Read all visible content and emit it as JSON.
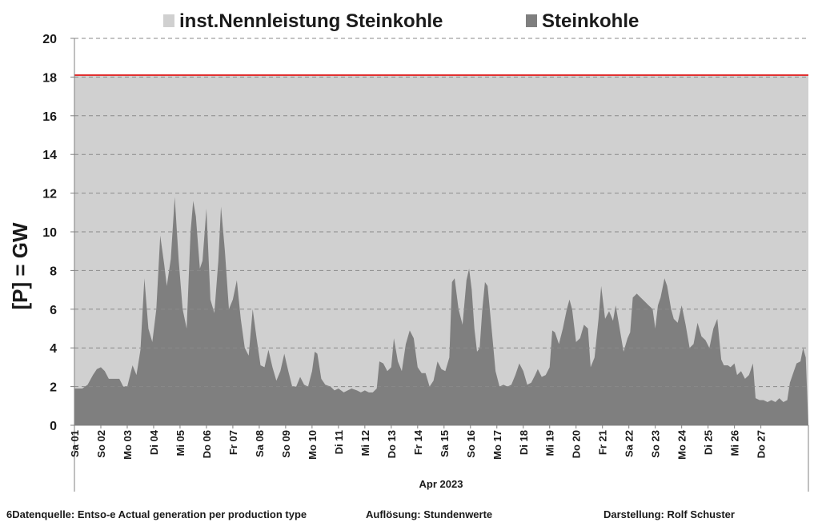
{
  "chart_data": {
    "type": "area",
    "ylabel": "[P]  =  GW",
    "xlabel": "Apr 2023",
    "ylim": [
      0,
      20
    ],
    "yticks": [
      0,
      2,
      4,
      6,
      8,
      10,
      12,
      14,
      16,
      18,
      20
    ],
    "grid": true,
    "legend_position": "top",
    "x_tick_labels": [
      "Sa 01",
      "So 02",
      "Mo 03",
      "Di 04",
      "Mi 05",
      "Do 06",
      "Fr 07",
      "Sa 08",
      "So 09",
      "Mo 10",
      "Di 11",
      "Mi 12",
      "Do 13",
      "Fr 14",
      "Sa 15",
      "So 16",
      "Mo 17",
      "Di 18",
      "Mi 19",
      "Do 20",
      "Fr 21",
      "Sa 22",
      "So 23",
      "Mo 24",
      "Di 25",
      "Mi 26",
      "Do 27"
    ],
    "x_range_days": [
      0,
      27.8
    ],
    "series": [
      {
        "name": "inst.Nennleistung Steinkohle",
        "color": "#d0d0d0",
        "line_color": "#e03030",
        "constant_value": 18.1
      },
      {
        "name": "Steinkohle",
        "color": "#7f7f7f",
        "points": [
          [
            0.0,
            1.9
          ],
          [
            0.3,
            1.9
          ],
          [
            0.5,
            2.1
          ],
          [
            0.7,
            2.6
          ],
          [
            0.85,
            2.9
          ],
          [
            1.0,
            3.0
          ],
          [
            1.15,
            2.8
          ],
          [
            1.3,
            2.4
          ],
          [
            1.5,
            2.4
          ],
          [
            1.7,
            2.4
          ],
          [
            1.85,
            2.0
          ],
          [
            2.0,
            2.0
          ],
          [
            2.2,
            3.1
          ],
          [
            2.35,
            2.6
          ],
          [
            2.5,
            3.9
          ],
          [
            2.65,
            7.6
          ],
          [
            2.8,
            5.0
          ],
          [
            2.95,
            4.3
          ],
          [
            3.1,
            6.0
          ],
          [
            3.25,
            9.8
          ],
          [
            3.4,
            8.3
          ],
          [
            3.5,
            7.2
          ],
          [
            3.65,
            8.6
          ],
          [
            3.8,
            11.8
          ],
          [
            3.95,
            8.5
          ],
          [
            4.1,
            6.0
          ],
          [
            4.25,
            5.0
          ],
          [
            4.4,
            10.0
          ],
          [
            4.5,
            11.6
          ],
          [
            4.6,
            10.8
          ],
          [
            4.75,
            8.1
          ],
          [
            4.85,
            8.5
          ],
          [
            5.0,
            11.2
          ],
          [
            5.15,
            6.5
          ],
          [
            5.3,
            5.8
          ],
          [
            5.45,
            8.5
          ],
          [
            5.55,
            11.3
          ],
          [
            5.7,
            9.0
          ],
          [
            5.85,
            6.0
          ],
          [
            6.0,
            6.5
          ],
          [
            6.15,
            7.5
          ],
          [
            6.3,
            5.5
          ],
          [
            6.45,
            4.0
          ],
          [
            6.6,
            3.6
          ],
          [
            6.75,
            6.0
          ],
          [
            6.9,
            4.5
          ],
          [
            7.05,
            3.1
          ],
          [
            7.2,
            3.0
          ],
          [
            7.35,
            3.9
          ],
          [
            7.5,
            3.0
          ],
          [
            7.65,
            2.3
          ],
          [
            7.8,
            2.8
          ],
          [
            7.95,
            3.7
          ],
          [
            8.1,
            2.8
          ],
          [
            8.25,
            2.0
          ],
          [
            8.4,
            2.0
          ],
          [
            8.55,
            2.5
          ],
          [
            8.7,
            2.1
          ],
          [
            8.85,
            2.0
          ],
          [
            9.0,
            2.8
          ],
          [
            9.1,
            3.8
          ],
          [
            9.2,
            3.7
          ],
          [
            9.35,
            2.4
          ],
          [
            9.5,
            2.1
          ],
          [
            9.7,
            2.0
          ],
          [
            9.85,
            1.8
          ],
          [
            10.0,
            1.9
          ],
          [
            10.2,
            1.7
          ],
          [
            10.35,
            1.8
          ],
          [
            10.5,
            1.9
          ],
          [
            10.7,
            1.8
          ],
          [
            10.85,
            1.7
          ],
          [
            11.0,
            1.8
          ],
          [
            11.15,
            1.7
          ],
          [
            11.3,
            1.7
          ],
          [
            11.45,
            1.9
          ],
          [
            11.55,
            3.3
          ],
          [
            11.7,
            3.2
          ],
          [
            11.85,
            2.8
          ],
          [
            12.0,
            3.0
          ],
          [
            12.1,
            4.5
          ],
          [
            12.25,
            3.3
          ],
          [
            12.4,
            2.8
          ],
          [
            12.55,
            4.2
          ],
          [
            12.7,
            4.9
          ],
          [
            12.85,
            4.5
          ],
          [
            13.0,
            3.0
          ],
          [
            13.15,
            2.7
          ],
          [
            13.3,
            2.7
          ],
          [
            13.45,
            2.0
          ],
          [
            13.6,
            2.3
          ],
          [
            13.75,
            3.3
          ],
          [
            13.9,
            2.9
          ],
          [
            14.05,
            2.8
          ],
          [
            14.2,
            3.5
          ],
          [
            14.3,
            7.4
          ],
          [
            14.4,
            7.6
          ],
          [
            14.55,
            6.0
          ],
          [
            14.7,
            5.2
          ],
          [
            14.85,
            7.5
          ],
          [
            14.95,
            8.1
          ],
          [
            15.05,
            7.0
          ],
          [
            15.15,
            5.0
          ],
          [
            15.25,
            3.8
          ],
          [
            15.35,
            4.0
          ],
          [
            15.45,
            6.0
          ],
          [
            15.55,
            7.4
          ],
          [
            15.65,
            7.2
          ],
          [
            15.8,
            5.0
          ],
          [
            15.95,
            2.8
          ],
          [
            16.1,
            2.0
          ],
          [
            16.25,
            2.1
          ],
          [
            16.4,
            2.0
          ],
          [
            16.55,
            2.1
          ],
          [
            16.7,
            2.6
          ],
          [
            16.85,
            3.2
          ],
          [
            17.0,
            2.8
          ],
          [
            17.15,
            2.1
          ],
          [
            17.3,
            2.2
          ],
          [
            17.45,
            2.6
          ],
          [
            17.55,
            2.9
          ],
          [
            17.7,
            2.5
          ],
          [
            17.85,
            2.6
          ],
          [
            18.0,
            3.0
          ],
          [
            18.1,
            4.9
          ],
          [
            18.2,
            4.8
          ],
          [
            18.35,
            4.2
          ],
          [
            18.5,
            5.0
          ],
          [
            18.65,
            6.0
          ],
          [
            18.75,
            6.5
          ],
          [
            18.85,
            6.0
          ],
          [
            19.0,
            4.3
          ],
          [
            19.15,
            4.5
          ],
          [
            19.3,
            5.2
          ],
          [
            19.45,
            5.0
          ],
          [
            19.55,
            3.0
          ],
          [
            19.7,
            3.5
          ],
          [
            19.85,
            5.5
          ],
          [
            19.95,
            7.2
          ],
          [
            20.1,
            5.5
          ],
          [
            20.25,
            5.9
          ],
          [
            20.4,
            5.4
          ],
          [
            20.5,
            6.2
          ],
          [
            20.65,
            5.0
          ],
          [
            20.8,
            3.8
          ],
          [
            20.95,
            4.5
          ],
          [
            21.05,
            4.8
          ],
          [
            21.15,
            6.6
          ],
          [
            21.3,
            6.8
          ],
          [
            21.45,
            6.6
          ],
          [
            21.6,
            6.4
          ],
          [
            21.75,
            6.2
          ],
          [
            21.9,
            6.0
          ],
          [
            22.0,
            5.0
          ],
          [
            22.1,
            6.2
          ],
          [
            22.2,
            6.6
          ],
          [
            22.35,
            7.6
          ],
          [
            22.45,
            7.2
          ],
          [
            22.6,
            6.0
          ],
          [
            22.7,
            5.5
          ],
          [
            22.85,
            5.3
          ],
          [
            23.0,
            6.2
          ],
          [
            23.15,
            5.2
          ],
          [
            23.3,
            4.0
          ],
          [
            23.45,
            4.2
          ],
          [
            23.6,
            5.3
          ],
          [
            23.75,
            4.6
          ],
          [
            23.9,
            4.4
          ],
          [
            24.05,
            4.0
          ],
          [
            24.2,
            5.0
          ],
          [
            24.35,
            5.5
          ],
          [
            24.5,
            3.4
          ],
          [
            24.6,
            3.1
          ],
          [
            24.75,
            3.1
          ],
          [
            24.85,
            3.0
          ],
          [
            25.0,
            3.2
          ],
          [
            25.1,
            2.6
          ],
          [
            25.25,
            2.8
          ],
          [
            25.4,
            2.4
          ],
          [
            25.55,
            2.6
          ],
          [
            25.7,
            3.2
          ],
          [
            25.8,
            1.4
          ],
          [
            25.95,
            1.3
          ],
          [
            26.1,
            1.3
          ],
          [
            26.25,
            1.2
          ],
          [
            26.4,
            1.3
          ],
          [
            26.55,
            1.2
          ],
          [
            26.7,
            1.4
          ],
          [
            26.85,
            1.2
          ],
          [
            27.0,
            1.3
          ],
          [
            27.1,
            2.2
          ],
          [
            27.2,
            2.6
          ],
          [
            27.35,
            3.2
          ],
          [
            27.5,
            3.3
          ],
          [
            27.6,
            4.0
          ],
          [
            27.7,
            3.5
          ],
          [
            27.8,
            0.0
          ]
        ]
      }
    ]
  },
  "footer": {
    "source": "6Datenquelle: Entso-e  Actual generation per production type",
    "resolution": "Auflösung:  Stundenwerte",
    "author": "Darstellung:  Rolf Schuster"
  }
}
